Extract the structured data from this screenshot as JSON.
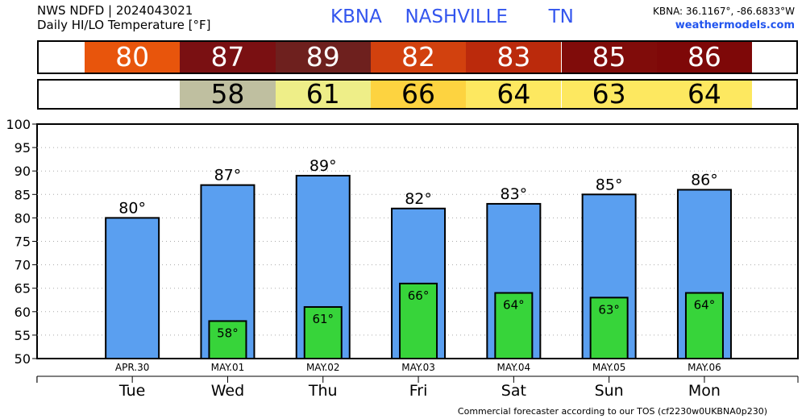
{
  "header": {
    "source": "NWS NDFD | 2024043021",
    "product": "Daily HI/LO Temperature [°F]",
    "station_code": "KBNA",
    "station_name": "NASHVILLE",
    "state": "TN",
    "coords": "KBNA: 36.1167°, -86.6833°W",
    "site": "weathermodels.com"
  },
  "strips": {
    "hi": [
      {
        "value": "80",
        "color": "#e8550c"
      },
      {
        "value": "87",
        "color": "#7a1012"
      },
      {
        "value": "89",
        "color": "#6e201e"
      },
      {
        "value": "82",
        "color": "#d2410e"
      },
      {
        "value": "83",
        "color": "#bb2a0c"
      },
      {
        "value": "85",
        "color": "#800c0a"
      },
      {
        "value": "86",
        "color": "#7e0808"
      }
    ],
    "lo": [
      {
        "value": "",
        "color": "#ffffff"
      },
      {
        "value": "58",
        "color": "#bfbfa0"
      },
      {
        "value": "61",
        "color": "#eeee88"
      },
      {
        "value": "66",
        "color": "#fdd340"
      },
      {
        "value": "64",
        "color": "#fde860"
      },
      {
        "value": "63",
        "color": "#fde860"
      },
      {
        "value": "64",
        "color": "#fde860"
      }
    ]
  },
  "footer": "Commercial forecaster according to our TOS (cf2230w0UKBNA0p230)",
  "chart_data": {
    "type": "bar",
    "dates": [
      "APR.30",
      "MAY.01",
      "MAY.02",
      "MAY.03",
      "MAY.04",
      "MAY.05",
      "MAY.06"
    ],
    "categories": [
      "Tue",
      "Wed",
      "Thu",
      "Fri",
      "Sat",
      "Sun",
      "Mon"
    ],
    "series": [
      {
        "values": [
          80,
          87,
          89,
          82,
          83,
          85,
          86
        ],
        "color": "#5a9ff0"
      },
      {
        "values": [
          null,
          58,
          61,
          66,
          64,
          63,
          64
        ],
        "color": "#37d43a"
      }
    ],
    "hi_labels": [
      "80°",
      "87°",
      "89°",
      "82°",
      "83°",
      "85°",
      "86°"
    ],
    "lo_labels": [
      "",
      "58°",
      "61°",
      "66°",
      "64°",
      "63°",
      "64°"
    ],
    "yticks": [
      "50",
      "55",
      "60",
      "65",
      "70",
      "75",
      "80",
      "85",
      "90",
      "95",
      "100"
    ],
    "ylim": [
      50,
      100
    ],
    "grid": true
  }
}
